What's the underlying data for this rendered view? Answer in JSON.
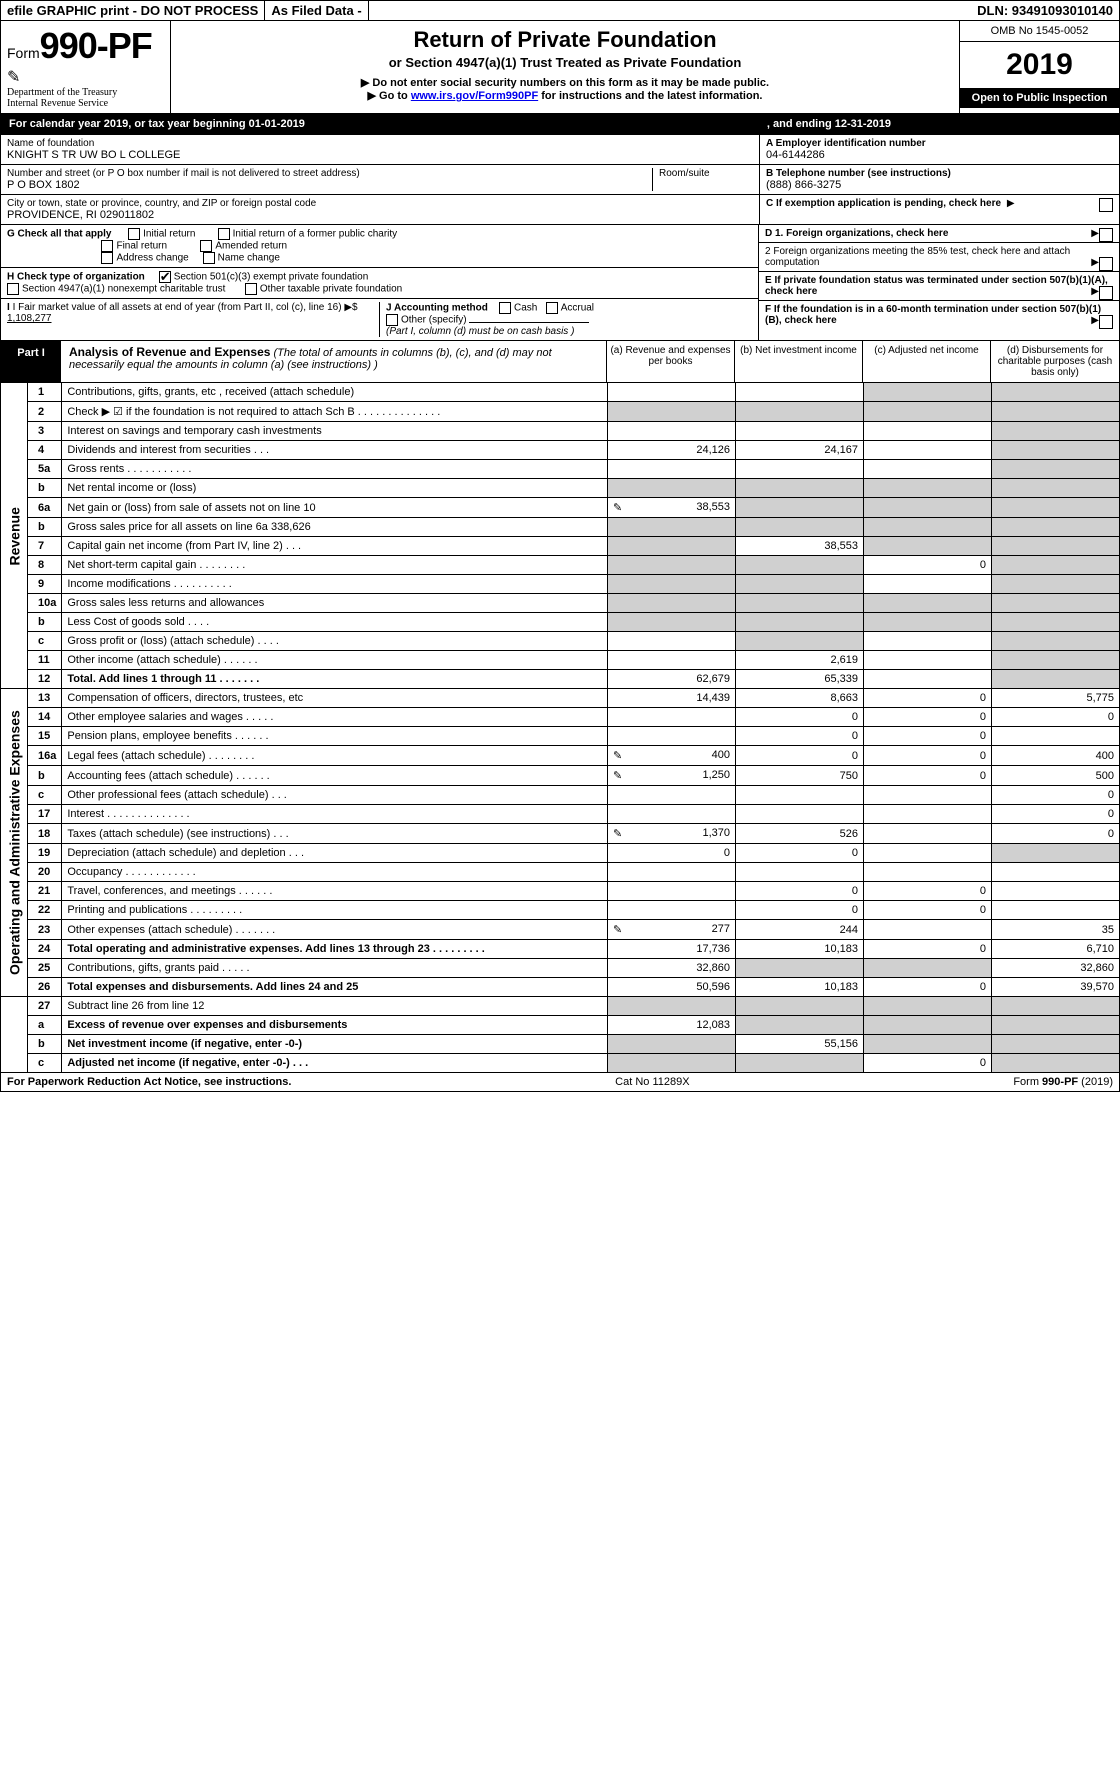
{
  "top": {
    "graphic": "efile GRAPHIC print - DO NOT PROCESS",
    "filed": "As Filed Data -",
    "dln": "DLN: 93491093010140"
  },
  "header": {
    "form_prefix": "Form",
    "form_no": "990-PF",
    "dept": "Department of the Treasury",
    "irs": "Internal Revenue Service",
    "title": "Return of Private Foundation",
    "subtitle": "or Section 4947(a)(1) Trust Treated as Private Foundation",
    "instr1": "▶ Do not enter social security numbers on this form as it may be made public.",
    "instr2a": "▶ Go to ",
    "instr2_link": "www.irs.gov/Form990PF",
    "instr2b": " for instructions and the latest information.",
    "omb": "OMB No 1545-0052",
    "year": "2019",
    "open": "Open to Public Inspection"
  },
  "cal": {
    "begin_label": "For calendar year 2019, or tax year beginning 01-01-2019",
    "end_label": ", and ending 12-31-2019"
  },
  "id": {
    "name_lbl": "Name of foundation",
    "name": "KNIGHT S TR UW BO L COLLEGE",
    "addr_lbl": "Number and street (or P O  box number if mail is not delivered to street address)",
    "addr": "P O BOX 1802",
    "room_lbl": "Room/suite",
    "city_lbl": "City or town, state or province, country, and ZIP or foreign postal code",
    "city": "PROVIDENCE, RI  029011802",
    "ein_lbl": "A Employer identification number",
    "ein": "04-6144286",
    "tel_lbl": "B Telephone number (see instructions)",
    "tel": "(888) 866-3275",
    "c_lbl": "C If exemption application is pending, check here"
  },
  "g": {
    "lbl": "G Check all that apply",
    "initial": "Initial return",
    "initial_former": "Initial return of a former public charity",
    "final": "Final return",
    "amended": "Amended return",
    "addr_change": "Address change",
    "name_change": "Name change"
  },
  "h": {
    "lbl": "H Check type of organization",
    "s501": "Section 501(c)(3) exempt private foundation",
    "s4947": "Section 4947(a)(1) nonexempt charitable trust",
    "other": "Other taxable private foundation"
  },
  "i": {
    "lbl": "I Fair market value of all assets at end of year (from Part II, col  (c), line 16)",
    "arrow": "▶$",
    "val": "1,108,277"
  },
  "j": {
    "lbl": "J Accounting method",
    "cash": "Cash",
    "accrual": "Accrual",
    "other": "Other (specify)",
    "note": "(Part I, column (d) must be on cash basis )"
  },
  "d_right": {
    "d1": "D 1. Foreign organizations, check here",
    "d2": "2  Foreign organizations meeting the 85% test, check here and attach computation",
    "e": "E  If private foundation status was terminated under section 507(b)(1)(A), check here",
    "f": "F  If the foundation is in a 60-month termination under section 507(b)(1)(B), check here"
  },
  "part1": {
    "tag": "Part I",
    "title": "Analysis of Revenue and Expenses",
    "title_note": " (The total of amounts in columns (b), (c), and (d) may not necessarily equal the amounts in column (a) (see instructions) )",
    "col_a": "(a)   Revenue and expenses per books",
    "col_b": "(b)  Net investment income",
    "col_c": "(c)  Adjusted net income",
    "col_d": "(d)  Disbursements for charitable purposes (cash basis only)"
  },
  "rows": [
    {
      "n": "1",
      "d": "Contributions, gifts, grants, etc , received (attach schedule)",
      "a": "",
      "b": "",
      "c": "shade",
      "dcol": "shade",
      "section": "rev"
    },
    {
      "n": "2",
      "d": "Check ▶ ☑ if the foundation is not required to attach Sch B     .  .  .  .  .  .  .  .  .  .  .  .  .  .",
      "a": "shade",
      "b": "shade",
      "c": "shade",
      "dcol": "shade",
      "section": "rev",
      "bold_not": true
    },
    {
      "n": "3",
      "d": "Interest on savings and temporary cash investments",
      "a": "",
      "b": "",
      "c": "",
      "dcol": "shade",
      "section": "rev"
    },
    {
      "n": "4",
      "d": "Dividends and interest from securities   .  .  .",
      "a": "24,126",
      "b": "24,167",
      "c": "",
      "dcol": "shade",
      "section": "rev"
    },
    {
      "n": "5a",
      "d": "Gross rents    .  .  .  .  .  .  .  .  .  .  .",
      "a": "",
      "b": "",
      "c": "",
      "dcol": "shade",
      "section": "rev"
    },
    {
      "n": "b",
      "d": "Net rental income or (loss)  ",
      "a": "shade",
      "b": "shade",
      "c": "shade",
      "dcol": "shade",
      "section": "rev",
      "inline_box": true
    },
    {
      "n": "6a",
      "d": "Net gain or (loss) from sale of assets not on line 10",
      "a": "38,553",
      "b": "shade",
      "c": "shade",
      "dcol": "shade",
      "section": "rev",
      "icon": true
    },
    {
      "n": "b",
      "d": "Gross sales price for all assets on line 6a           338,626",
      "a": "shade",
      "b": "shade",
      "c": "shade",
      "dcol": "shade",
      "section": "rev"
    },
    {
      "n": "7",
      "d": "Capital gain net income (from Part IV, line 2)  .  .  .",
      "a": "shade",
      "b": "38,553",
      "c": "shade",
      "dcol": "shade",
      "section": "rev"
    },
    {
      "n": "8",
      "d": "Net short-term capital gain  .  .  .  .  .  .  .  .",
      "a": "shade",
      "b": "shade",
      "c": "0",
      "dcol": "shade",
      "section": "rev"
    },
    {
      "n": "9",
      "d": "Income modifications .  .  .  .  .  .  .  .  .  .",
      "a": "shade",
      "b": "shade",
      "c": "",
      "dcol": "shade",
      "section": "rev"
    },
    {
      "n": "10a",
      "d": "Gross sales less returns and allowances",
      "a": "shade",
      "b": "shade",
      "c": "shade",
      "dcol": "shade",
      "section": "rev",
      "inline_box": true
    },
    {
      "n": "b",
      "d": "Less  Cost of goods sold   .  .  .  .",
      "a": "shade",
      "b": "shade",
      "c": "shade",
      "dcol": "shade",
      "section": "rev",
      "inline_box": true
    },
    {
      "n": "c",
      "d": "Gross profit or (loss) (attach schedule)   .  .  .  .",
      "a": "",
      "b": "shade",
      "c": "",
      "dcol": "shade",
      "section": "rev"
    },
    {
      "n": "11",
      "d": "Other income (attach schedule)   .  .  .  .  .  .",
      "a": "",
      "b": "2,619",
      "c": "",
      "dcol": "shade",
      "section": "rev"
    },
    {
      "n": "12",
      "d": "Total. Add lines 1 through 11   .  .  .  .  .  .  .",
      "a": "62,679",
      "b": "65,339",
      "c": "",
      "dcol": "shade",
      "section": "rev",
      "bold": true
    },
    {
      "n": "13",
      "d": "Compensation of officers, directors, trustees, etc",
      "a": "14,439",
      "b": "8,663",
      "c": "0",
      "dcol": "5,775",
      "section": "exp"
    },
    {
      "n": "14",
      "d": "Other employee salaries and wages   .  .  .  .  .",
      "a": "",
      "b": "0",
      "c": "0",
      "dcol": "0",
      "section": "exp"
    },
    {
      "n": "15",
      "d": "Pension plans, employee benefits  .  .  .  .  .  .",
      "a": "",
      "b": "0",
      "c": "0",
      "dcol": "",
      "section": "exp"
    },
    {
      "n": "16a",
      "d": "Legal fees (attach schedule) .  .  .  .  .  .  .  .",
      "a": "400",
      "b": "0",
      "c": "0",
      "dcol": "400",
      "section": "exp",
      "icon": true
    },
    {
      "n": "b",
      "d": "Accounting fees (attach schedule) .  .  .  .  .  .",
      "a": "1,250",
      "b": "750",
      "c": "0",
      "dcol": "500",
      "section": "exp",
      "icon": true
    },
    {
      "n": "c",
      "d": "Other professional fees (attach schedule)   .  .  .",
      "a": "",
      "b": "",
      "c": "",
      "dcol": "0",
      "section": "exp"
    },
    {
      "n": "17",
      "d": "Interest  .  .  .  .  .  .  .  .  .  .  .  .  .  .",
      "a": "",
      "b": "",
      "c": "",
      "dcol": "0",
      "section": "exp"
    },
    {
      "n": "18",
      "d": "Taxes (attach schedule) (see instructions)     .  .  .",
      "a": "1,370",
      "b": "526",
      "c": "",
      "dcol": "0",
      "section": "exp",
      "icon": true
    },
    {
      "n": "19",
      "d": "Depreciation (attach schedule) and depletion   .  .  .",
      "a": "0",
      "b": "0",
      "c": "",
      "dcol": "shade",
      "section": "exp"
    },
    {
      "n": "20",
      "d": "Occupancy   .  .  .  .  .  .  .  .  .  .  .  .",
      "a": "",
      "b": "",
      "c": "",
      "dcol": "",
      "section": "exp"
    },
    {
      "n": "21",
      "d": "Travel, conferences, and meetings .  .  .  .  .  .",
      "a": "",
      "b": "0",
      "c": "0",
      "dcol": "",
      "section": "exp"
    },
    {
      "n": "22",
      "d": "Printing and publications .  .  .  .  .  .  .  .  .",
      "a": "",
      "b": "0",
      "c": "0",
      "dcol": "",
      "section": "exp"
    },
    {
      "n": "23",
      "d": "Other expenses (attach schedule) .  .  .  .  .  .  .",
      "a": "277",
      "b": "244",
      "c": "",
      "dcol": "35",
      "section": "exp",
      "icon": true
    },
    {
      "n": "24",
      "d": "Total operating and administrative expenses. Add lines 13 through 23  .  .  .  .  .  .  .  .  .",
      "a": "17,736",
      "b": "10,183",
      "c": "0",
      "dcol": "6,710",
      "section": "exp",
      "bold": true
    },
    {
      "n": "25",
      "d": "Contributions, gifts, grants paid    .  .  .  .  .",
      "a": "32,860",
      "b": "shade",
      "c": "shade",
      "dcol": "32,860",
      "section": "exp"
    },
    {
      "n": "26",
      "d": "Total expenses and disbursements. Add lines 24 and 25",
      "a": "50,596",
      "b": "10,183",
      "c": "0",
      "dcol": "39,570",
      "section": "exp",
      "bold": true
    },
    {
      "n": "27",
      "d": "Subtract line 26 from line 12",
      "a": "shade",
      "b": "shade",
      "c": "shade",
      "dcol": "shade",
      "section": "bot"
    },
    {
      "n": "a",
      "d": "Excess of revenue over expenses and disbursements",
      "a": "12,083",
      "b": "shade",
      "c": "shade",
      "dcol": "shade",
      "section": "bot",
      "bold": true
    },
    {
      "n": "b",
      "d": "Net investment income (if negative, enter -0-)",
      "a": "shade",
      "b": "55,156",
      "c": "shade",
      "dcol": "shade",
      "section": "bot",
      "bold": true
    },
    {
      "n": "c",
      "d": "Adjusted net income (if negative, enter -0-)  .  .  .",
      "a": "shade",
      "b": "shade",
      "c": "0",
      "dcol": "shade",
      "section": "bot",
      "bold": true
    }
  ],
  "side_labels": {
    "rev": "Revenue",
    "exp": "Operating and Administrative Expenses"
  },
  "footer": {
    "left": "For Paperwork Reduction Act Notice, see instructions.",
    "mid": "Cat No 11289X",
    "right": "Form 990-PF (2019)"
  }
}
